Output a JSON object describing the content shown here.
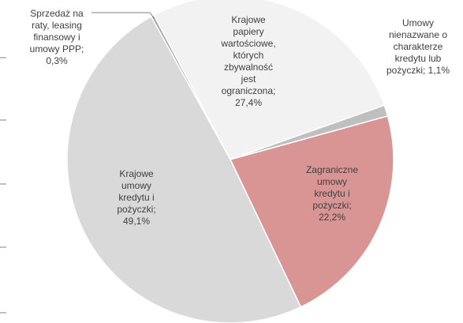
{
  "chart_data": {
    "type": "pie",
    "categories": [
      "Sprzedaż na raty, leasing finansowy i umowy PPP;",
      "Krajowe papiery wartościowe, których zbywalność jest ograniczona;",
      "Umowy nienazwane o charakterze kredytu lub pożyczki;",
      "Zagraniczne umowy kredytu i pożyczki;",
      "Krajowe umowy kredytu i pożyczki;"
    ],
    "values": [
      0.3,
      27.4,
      1.1,
      22.2,
      49.1
    ],
    "value_labels": [
      "0,3%",
      "27,4%",
      "1,1%",
      "22,2%",
      "49,1%"
    ],
    "colors": [
      "#a6a6a6",
      "#f2f2f2",
      "#bfbfbf",
      "#d99594",
      "#d9d9d9"
    ]
  }
}
